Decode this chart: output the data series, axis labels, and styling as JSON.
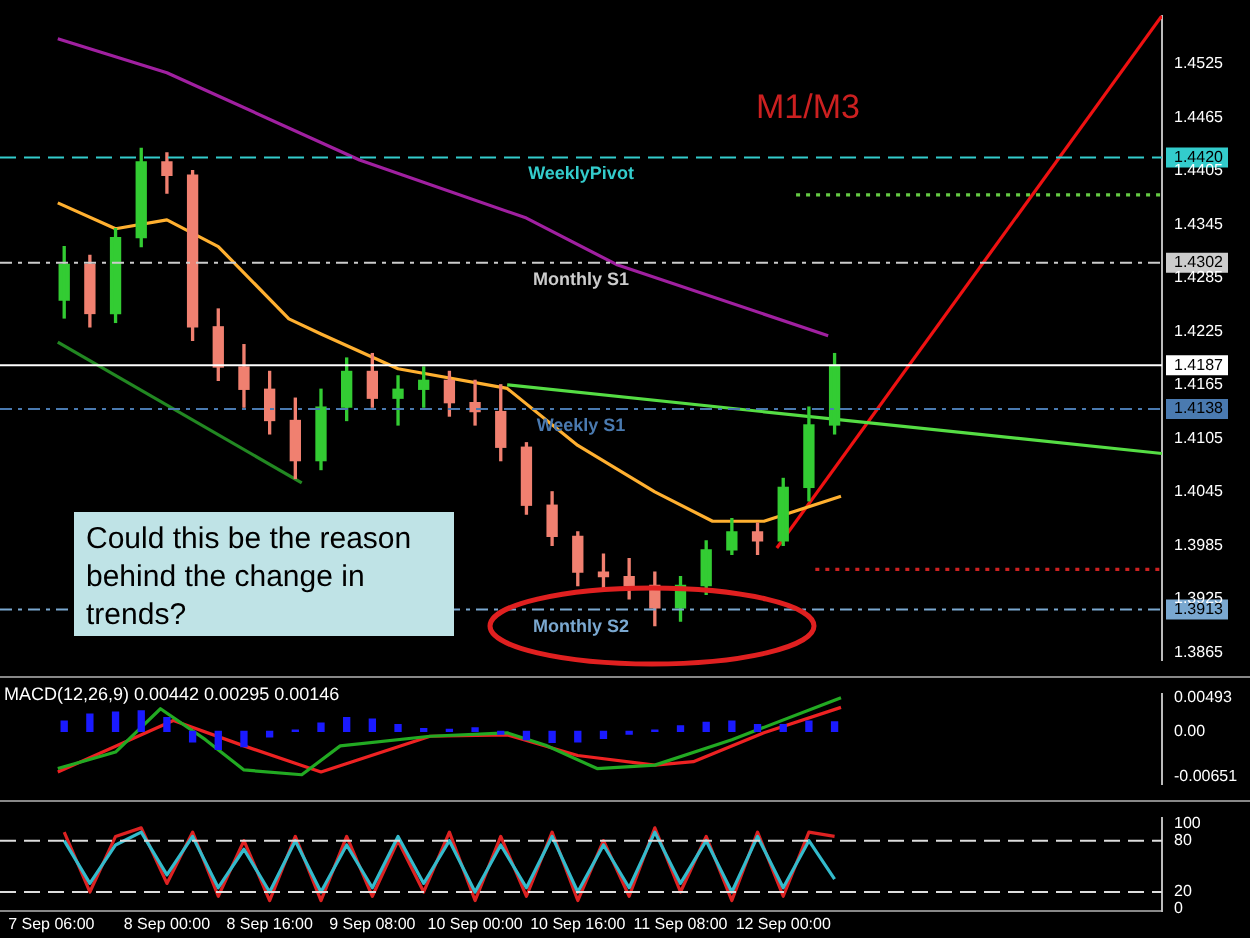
{
  "chart_data": [
    {
      "type": "candlestick",
      "annotations": [
        "M1/M3",
        "Could this be the reason behind the change in trends?"
      ],
      "x": [
        "--09-07T08:00",
        "--09-07T12:00",
        "--09-07T16:00",
        "--09-07T20:00",
        "--09-08T00:00",
        "--09-08T04:00",
        "--09-08T08:00",
        "--09-08T12:00",
        "--09-08T16:00",
        "--09-08T20:00",
        "--09-09T00:00",
        "--09-09T04:00",
        "--09-09T08:00",
        "--09-09T12:00",
        "--09-09T16:00",
        "--09-09T20:00",
        "--09-10T00:00",
        "--09-10T04:00",
        "--09-10T08:00",
        "--09-10T12:00",
        "--09-10T16:00",
        "--09-10T20:00",
        "--09-11T00:00",
        "--09-11T04:00",
        "--09-11T08:00",
        "--09-11T12:00",
        "--09-11T16:00",
        "--09-11T20:00",
        "--09-12T00:00",
        "--09-12T04:00",
        "--09-12T08:00"
      ],
      "ohlc": [
        [
          1.426,
          1.432,
          1.424,
          1.43
        ],
        [
          1.43,
          1.431,
          1.423,
          1.4245
        ],
        [
          1.4245,
          1.434,
          1.4235,
          1.433
        ],
        [
          1.433,
          1.443,
          1.432,
          1.4415
        ],
        [
          1.4415,
          1.4425,
          1.438,
          1.44
        ],
        [
          1.44,
          1.4405,
          1.4215,
          1.423
        ],
        [
          1.423,
          1.425,
          1.417,
          1.4185
        ],
        [
          1.4185,
          1.421,
          1.414,
          1.416
        ],
        [
          1.416,
          1.418,
          1.411,
          1.4125
        ],
        [
          1.4125,
          1.415,
          1.406,
          1.408
        ],
        [
          1.408,
          1.416,
          1.407,
          1.414
        ],
        [
          1.414,
          1.4195,
          1.4125,
          1.418
        ],
        [
          1.418,
          1.42,
          1.414,
          1.415
        ],
        [
          1.415,
          1.4175,
          1.412,
          1.416
        ],
        [
          1.416,
          1.4185,
          1.414,
          1.417
        ],
        [
          1.417,
          1.418,
          1.413,
          1.4145
        ],
        [
          1.4145,
          1.417,
          1.412,
          1.4135
        ],
        [
          1.4135,
          1.4165,
          1.408,
          1.4095
        ],
        [
          1.4095,
          1.41,
          1.402,
          1.403
        ],
        [
          1.403,
          1.4045,
          1.3985,
          1.3995
        ],
        [
          1.3995,
          1.4,
          1.394,
          1.3955
        ],
        [
          1.3955,
          1.3975,
          1.3935,
          1.395
        ],
        [
          1.395,
          1.397,
          1.3925,
          1.394
        ],
        [
          1.394,
          1.3955,
          1.3895,
          1.3915
        ],
        [
          1.3915,
          1.395,
          1.39,
          1.394
        ],
        [
          1.394,
          1.399,
          1.393,
          1.398
        ],
        [
          1.398,
          1.4015,
          1.3975,
          1.4
        ],
        [
          1.4,
          1.401,
          1.3975,
          1.399
        ],
        [
          1.399,
          1.406,
          1.3985,
          1.405
        ],
        [
          1.405,
          1.414,
          1.4035,
          1.412
        ],
        [
          1.412,
          1.42,
          1.411,
          1.4187
        ]
      ],
      "colors": [
        "#33cc33",
        "#f08070",
        "#33cc33",
        "#33cc33",
        "#f08070",
        "#f08070",
        "#f08070",
        "#f08070",
        "#f08070",
        "#f08070",
        "#33cc33",
        "#33cc33",
        "#f08070",
        "#33cc33",
        "#33cc33",
        "#f08070",
        "#f08070",
        "#f08070",
        "#f08070",
        "#f08070",
        "#f08070",
        "#f08070",
        "#f08070",
        "#f08070",
        "#33cc33",
        "#33cc33",
        "#33cc33",
        "#f08070",
        "#33cc33",
        "#33cc33",
        "#33cc33"
      ],
      "series": [
        {
          "type": "line",
          "color": "#a020a0",
          "x": [
            "--09-07T07:00",
            "--09-08T00:00",
            "--09-09T06:00",
            "--09-10T08:00",
            "--09-10T22:00",
            "--09-12T07:00"
          ],
          "values": [
            1.4553,
            1.4515,
            1.4417,
            1.4352,
            1.43,
            1.422
          ]
        },
        {
          "type": "line",
          "color": "#ffb030",
          "x": [
            "--09-07T07:00",
            "--09-07T16:00",
            "--09-08T00:00",
            "--09-08T08:00",
            "--09-08T19:00",
            "--09-09T00:00",
            "--09-09T12:00",
            "--09-10T05:00",
            "--09-10T16:00",
            "--09-11T04:00",
            "--09-11T13:00",
            "--09-11T21:00",
            "--09-12T09:00"
          ],
          "values": [
            1.4369,
            1.434,
            1.435,
            1.432,
            1.4239,
            1.4222,
            1.4183,
            1.4161,
            1.4097,
            1.4045,
            1.4012,
            1.4012,
            1.404
          ]
        },
        {
          "type": "line",
          "color": "#55dd44",
          "x": [
            "--09-10T05:00",
            "--09-14T11:00"
          ],
          "values": [
            1.4165,
            1.4088
          ]
        },
        {
          "type": "line",
          "color": "#228822",
          "x": [
            "--09-07T07:00",
            "--09-08T21:00"
          ],
          "values": [
            1.4213,
            1.4055
          ]
        },
        {
          "type": "line",
          "color": "#ee1111",
          "x": [
            "--09-11T23:00",
            "--09-14T11:00"
          ],
          "values": [
            1.3982,
            1.4579
          ]
        },
        {
          "type": "line",
          "color": "#66cc44",
          "line_style": "dotted",
          "x": [
            "--09-12T02:00",
            "--09-14T11:00"
          ],
          "values": [
            1.4378,
            1.4378
          ]
        },
        {
          "type": "line",
          "color": "#cc2222",
          "line_style": "dotted",
          "x": [
            "--09-12T05:00",
            "--09-14T11:00"
          ],
          "values": [
            1.3958,
            1.3958
          ]
        }
      ],
      "xlim": [
        "--09-06T22:00",
        "--09-14T11:00"
      ],
      "ylim": [
        1.3856,
        1.4579
      ],
      "yticks": [
        1.4525,
        1.4465,
        {
          "value": 1.442,
          "label": "1.4420"
        },
        1.4405,
        1.4345,
        {
          "value": 1.4302,
          "label": "1.4302"
        },
        1.4285,
        1.4225,
        {
          "value": 1.4187,
          "label": "1.4187"
        },
        1.4165,
        {
          "value": 1.4138,
          "label": "1.4138"
        },
        1.4105,
        1.4045,
        1.3985,
        1.3925,
        {
          "value": 1.3913,
          "label": "1.3913"
        },
        1.3865
      ],
      "tick_labels": "y",
      "ref_lines": [
        {
          "axis": "y",
          "value": 1.442,
          "label": "WeeklyPivot",
          "color": "#33cccc",
          "line_style": "dashed"
        },
        {
          "axis": "y",
          "value": 1.4302,
          "label": "Monthly S1",
          "color": "#cccccc",
          "line_style": "dashdot"
        },
        {
          "axis": "y",
          "value": 1.4187,
          "label": null,
          "color": "#ffffff",
          "line_style": "solid"
        },
        {
          "axis": "y",
          "value": 1.4138,
          "label": "Weekly S1",
          "color": "#4a7ab0",
          "line_style": "dashdot"
        },
        {
          "axis": "y",
          "value": 1.3913,
          "label": "Monthly S2",
          "color": "#7aa8d0",
          "line_style": "dashdot"
        }
      ]
    },
    {
      "type": "line",
      "title": "MACD(12,26,9) 0.00442 0.00295 0.00146",
      "xlim": [
        "--09-06T22:00",
        "--09-14T11:00"
      ],
      "ylim": [
        -0.0077,
        0.0055
      ],
      "yticks": [
        0.00493,
        {
          "value": 0,
          "label": "0.00"
        },
        -0.00651
      ],
      "tick_labels": "y",
      "series": [
        {
          "type": "bar",
          "color": "#1a1aff",
          "x": [
            "--09-07T08:00",
            "--09-07T12:00",
            "--09-07T16:00",
            "--09-07T20:00",
            "--09-08T00:00",
            "--09-08T04:00",
            "--09-08T08:00",
            "--09-08T12:00",
            "--09-08T16:00",
            "--09-08T20:00",
            "--09-09T00:00",
            "--09-09T04:00",
            "--09-09T08:00",
            "--09-09T12:00",
            "--09-09T16:00",
            "--09-09T20:00",
            "--09-10T00:00",
            "--09-10T04:00",
            "--09-10T08:00",
            "--09-10T12:00",
            "--09-10T16:00",
            "--09-10T20:00",
            "--09-11T00:00",
            "--09-11T04:00",
            "--09-11T08:00",
            "--09-11T12:00",
            "--09-11T16:00",
            "--09-11T20:00",
            "--09-12T00:00",
            "--09-12T04:00",
            "--09-12T08:00"
          ],
          "values": [
            0.0015,
            0.0025,
            0.0028,
            0.003,
            0.002,
            -0.0015,
            -0.0026,
            -0.0022,
            -0.0008,
            0.0002,
            0.0012,
            0.002,
            0.0018,
            0.001,
            0.0004,
            0.0003,
            0.0005,
            -0.0004,
            -0.0012,
            -0.0016,
            -0.0015,
            -0.001,
            -0.0004,
            0.0002,
            0.0008,
            0.0013,
            0.0015,
            0.001,
            0.001,
            0.0015,
            0.0014
          ]
        },
        {
          "type": "line",
          "color": "#22aa22",
          "x": [
            "--09-07T07:00",
            "--09-07T16:00",
            "--09-07T23:00",
            "--09-08T06:00",
            "--09-08T12:00",
            "--09-08T21:00",
            "--09-09T03:00",
            "--09-09T17:00",
            "--09-10T05:00",
            "--09-10T11:00",
            "--09-10T19:00",
            "--09-11T04:00",
            "--09-11T16:00",
            "--09-12T09:00"
          ],
          "values": [
            -0.0054,
            -0.003,
            0.0033,
            -0.0012,
            -0.0056,
            -0.0063,
            -0.0021,
            -0.0007,
            -0.0002,
            -0.002,
            -0.0054,
            -0.0049,
            -0.0012,
            0.0049
          ]
        },
        {
          "type": "line",
          "color": "#ee2222",
          "x": [
            "--09-07T07:00",
            "--09-08T01:00",
            "--09-08T12:00",
            "--09-09T00:00",
            "--09-09T17:00",
            "--09-10T05:00",
            "--09-10T16:00",
            "--09-11T04:00",
            "--09-11T10:00",
            "--09-11T21:00",
            "--09-12T09:00"
          ],
          "values": [
            -0.0059,
            0.0016,
            -0.0021,
            -0.0059,
            -0.0007,
            -0.0005,
            -0.0035,
            -0.0049,
            -0.0044,
            -0.0002,
            0.0035
          ]
        }
      ]
    },
    {
      "type": "line",
      "xlim": [
        "--09-06T22:00",
        "--09-14T11:00"
      ],
      "ylim": [
        -2,
        107
      ],
      "yticks": [
        100,
        80,
        20,
        0
      ],
      "xticks": [
        {
          "value": "--09-07T06:00",
          "label": "7 Sep 06:00"
        },
        {
          "value": "--09-08T00:00",
          "label": "8 Sep 00:00"
        },
        {
          "value": "--09-08T16:00",
          "label": "8 Sep 16:00"
        },
        {
          "value": "--09-09T08:00",
          "label": "9 Sep 08:00"
        },
        {
          "value": "--09-10T00:00",
          "label": "10 Sep 00:00"
        },
        {
          "value": "--09-10T16:00",
          "label": "10 Sep 16:00"
        },
        {
          "value": "--09-11T08:00",
          "label": "11 Sep 08:00"
        },
        {
          "value": "--09-12T00:00",
          "label": "12 Sep 00:00"
        }
      ],
      "ref_lines": [
        {
          "axis": "y",
          "value": 80,
          "label": null,
          "color": "#dddddd",
          "line_style": "dashed"
        },
        {
          "axis": "y",
          "value": 20,
          "label": null,
          "color": "#dddddd",
          "line_style": "dashed"
        }
      ],
      "x": [
        "--09-07T08:00",
        "--09-07T12:00",
        "--09-07T16:00",
        "--09-07T20:00",
        "--09-08T00:00",
        "--09-08T04:00",
        "--09-08T08:00",
        "--09-08T12:00",
        "--09-08T16:00",
        "--09-08T20:00",
        "--09-09T00:00",
        "--09-09T04:00",
        "--09-09T08:00",
        "--09-09T12:00",
        "--09-09T16:00",
        "--09-09T20:00",
        "--09-10T00:00",
        "--09-10T04:00",
        "--09-10T08:00",
        "--09-10T12:00",
        "--09-10T16:00",
        "--09-10T20:00",
        "--09-11T00:00",
        "--09-11T04:00",
        "--09-11T08:00",
        "--09-11T12:00",
        "--09-11T16:00",
        "--09-11T20:00",
        "--09-12T00:00",
        "--09-12T04:00",
        "--09-12T08:00"
      ],
      "series": [
        {
          "type": "line",
          "color": "#33bbcc",
          "values": [
            80,
            30,
            75,
            90,
            40,
            85,
            25,
            70,
            20,
            80,
            20,
            75,
            25,
            85,
            30,
            80,
            20,
            75,
            25,
            85,
            20,
            75,
            25,
            90,
            30,
            80,
            20,
            85,
            25,
            80,
            35
          ]
        },
        {
          "type": "line",
          "color": "#dd2222",
          "values": [
            90,
            20,
            85,
            95,
            30,
            90,
            15,
            80,
            10,
            85,
            10,
            85,
            15,
            80,
            20,
            90,
            10,
            85,
            15,
            90,
            10,
            80,
            15,
            95,
            20,
            85,
            10,
            90,
            15,
            90,
            85
          ]
        }
      ]
    }
  ]
}
